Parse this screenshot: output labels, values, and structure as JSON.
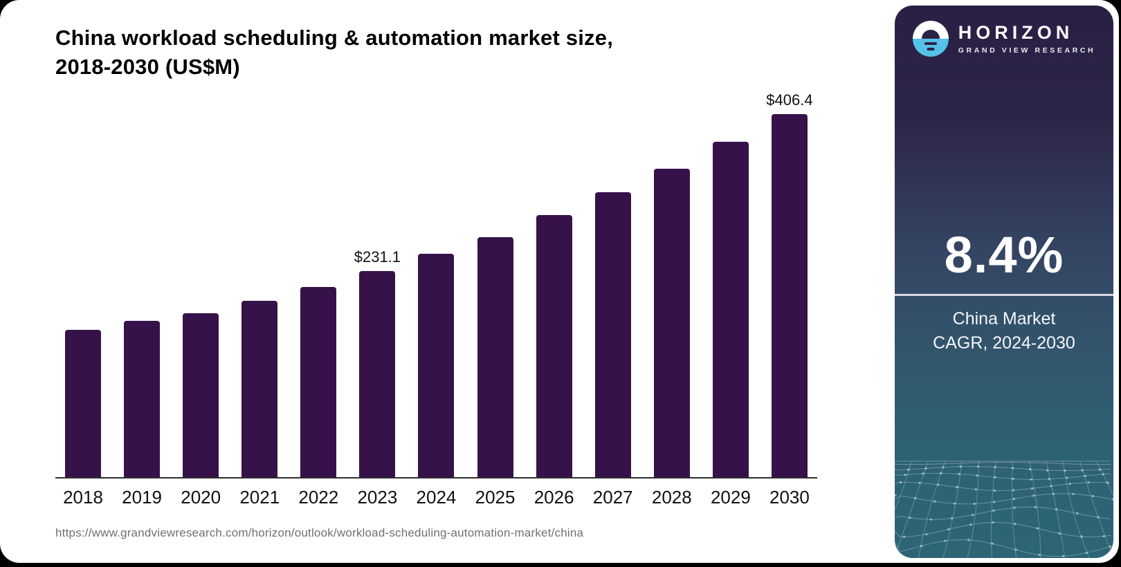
{
  "chart": {
    "title_line1": "China workload scheduling & automation market size,",
    "title_line2": "2018-2030 (US$M)",
    "source_url": "https://www.grandviewresearch.com/horizon/outlook/workload-scheduling-automation-market/china"
  },
  "chart_data": {
    "type": "bar",
    "title": "China workload scheduling & automation market size, 2018-2030 (US$M)",
    "categories": [
      "2018",
      "2019",
      "2020",
      "2021",
      "2022",
      "2023",
      "2024",
      "2025",
      "2026",
      "2027",
      "2028",
      "2029",
      "2030"
    ],
    "values": [
      166.0,
      176.1,
      184.5,
      198.4,
      213.9,
      231.1,
      250.5,
      269.4,
      293.5,
      319.6,
      345.8,
      375.2,
      406.4
    ],
    "point_labels": [
      "",
      "",
      "",
      "",
      "",
      "$231.1",
      "",
      "",
      "",
      "",
      "",
      "",
      "$406.4"
    ],
    "xlabel": "",
    "ylabel": "",
    "ylim": [
      0,
      430
    ],
    "grid": false,
    "legend": "none",
    "bar_color": "#36124a",
    "axis_color": "#2e2e2e"
  },
  "sidebar": {
    "logo": {
      "brand": "HORIZON",
      "subbrand": "GRAND VIEW RESEARCH"
    },
    "stat_value": "8.4%",
    "stat_label_line1": "China Market",
    "stat_label_line2": "CAGR, 2024-2030",
    "colors": {
      "panel_top": "#2a1f44",
      "panel_mid": "#344462",
      "panel_bottom": "#2d6576",
      "logo_blue": "#56c1e8",
      "text": "#ffffff"
    }
  }
}
